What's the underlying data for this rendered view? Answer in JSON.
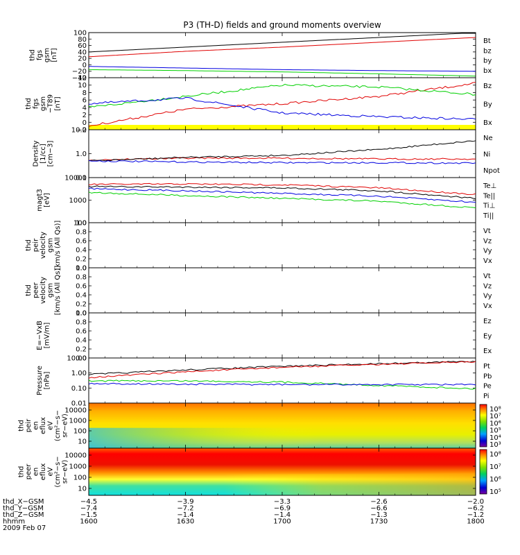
{
  "title": "P3 (TH-D) fields and ground moments overview",
  "colors": {
    "black": "#000000",
    "red": "#e00000",
    "green": "#00d000",
    "blue": "#0000e0",
    "yellow": "#ffff00"
  },
  "panels": [
    {
      "id": "fgs",
      "ylabel": [
        "thd",
        "fgs",
        "gsm",
        "[nT]"
      ],
      "yticks": [
        "100",
        "80",
        "60",
        "40",
        "20",
        "0",
        "−20",
        "−40"
      ],
      "ylim": [
        -40,
        100
      ],
      "legend": [
        {
          "text": "Bt",
          "color": "black"
        },
        {
          "text": "bz",
          "color": "red"
        },
        {
          "text": "by",
          "color": "green"
        },
        {
          "text": "bx",
          "color": "blue"
        }
      ]
    },
    {
      "id": "fgs_t89",
      "ylabel": [
        "thd",
        "fgs",
        "gsm",
        "−T89",
        "[nT]"
      ],
      "yticks": [
        "12",
        "10",
        "8",
        "6",
        "4",
        "2",
        "0",
        "−2"
      ],
      "ylim": [
        -2,
        12
      ],
      "legend": [
        {
          "text": "Bz",
          "color": "red"
        },
        {
          "text": "By",
          "color": "green"
        },
        {
          "text": "Bx",
          "color": "blue"
        }
      ]
    },
    {
      "id": "density",
      "ylabel": [
        "Density",
        "[1/cc]",
        "[cm−3]"
      ],
      "yticks": [
        "10.0",
        "1.0",
        "0.1"
      ],
      "ylim": [
        0.1,
        10
      ],
      "legend": [
        {
          "text": "Ne",
          "color": "red"
        },
        {
          "text": "Ni",
          "color": "black"
        },
        {
          "text": "Npot",
          "color": "blue"
        }
      ]
    },
    {
      "id": "temperature",
      "ylabel": [
        "magt3",
        "[eV]"
      ],
      "yticks": [
        "10000",
        "1000",
        "100"
      ],
      "ylim": [
        100,
        10000
      ],
      "legend": [
        {
          "text": "Te⊥",
          "color": "red"
        },
        {
          "text": "Te||",
          "color": "black"
        },
        {
          "text": "Ti⊥",
          "color": "blue"
        },
        {
          "text": "Ti||",
          "color": "green"
        }
      ]
    },
    {
      "id": "peir_velocity",
      "ylabel": [
        "thd",
        "peir",
        "velocity",
        "gsm",
        "[km/s (All Qs)]"
      ],
      "yticks": [
        "1.0",
        "0.8",
        "0.6",
        "0.4",
        "0.2",
        "0.0"
      ],
      "ylim": [
        0,
        1
      ],
      "legend": [
        {
          "text": "Vt",
          "color": "black"
        },
        {
          "text": "Vz",
          "color": "red"
        },
        {
          "text": "Vy",
          "color": "green"
        },
        {
          "text": "Vx",
          "color": "blue"
        }
      ]
    },
    {
      "id": "peer_velocity",
      "ylabel": [
        "thd",
        "peer",
        "velocity",
        "gsm",
        "[km/s (All Qs)]"
      ],
      "yticks": [
        "1.0",
        "0.8",
        "0.6",
        "0.4",
        "0.2",
        "0.0"
      ],
      "ylim": [
        0,
        1
      ],
      "legend": [
        {
          "text": "Vt",
          "color": "black"
        },
        {
          "text": "Vz",
          "color": "red"
        },
        {
          "text": "Vy",
          "color": "green"
        },
        {
          "text": "Vx",
          "color": "blue"
        }
      ]
    },
    {
      "id": "efield",
      "ylabel": [
        "E=−VxB",
        "[mV/m]"
      ],
      "yticks": [
        "1.0",
        "0.8",
        "0.6",
        "0.4",
        "0.2",
        "0.0"
      ],
      "ylim": [
        0,
        1
      ],
      "legend": [
        {
          "text": "Ez",
          "color": "red"
        },
        {
          "text": "Ey",
          "color": "green"
        },
        {
          "text": "Ex",
          "color": "blue"
        }
      ]
    },
    {
      "id": "pressure",
      "ylabel": [
        "Pressure",
        "[nPa]"
      ],
      "yticks": [
        "10.00",
        "1.00",
        "0.10",
        "0.01"
      ],
      "ylim": [
        0.01,
        10
      ],
      "legend": [
        {
          "text": "Pt",
          "color": "black"
        },
        {
          "text": "Pb",
          "color": "red"
        },
        {
          "text": "Pe",
          "color": "green"
        },
        {
          "text": "Pi",
          "color": "blue"
        }
      ]
    },
    {
      "id": "peir_eflux",
      "ylabel": [
        "thd",
        "peir",
        "en",
        "eflux",
        "eV",
        "(cm²−s−",
        "sr−eV)"
      ],
      "yticks": [
        "10000",
        "1000",
        "100",
        "10"
      ],
      "colorbar": [
        "10⁸",
        "10⁷",
        "10⁶",
        "10⁵",
        "10⁴",
        "10³"
      ]
    },
    {
      "id": "peer_eflux",
      "ylabel": [
        "thd",
        "peer",
        "en",
        "eflux",
        "eV",
        "(cm²−s−",
        "sr−eV)"
      ],
      "yticks": [
        "10000",
        "1000",
        "100",
        "10"
      ],
      "colorbar": [
        "10⁸",
        "10⁷",
        "10⁶",
        "10⁵"
      ]
    }
  ],
  "xaxis": {
    "rows": [
      {
        "label": "thd_X−GSM",
        "values": [
          "−4.5",
          "−3.9",
          "−3.3",
          "−2.6",
          "−2.0"
        ]
      },
      {
        "label": "thd_Y−GSM",
        "values": [
          "−7.4",
          "−7.2",
          "−6.9",
          "−6.6",
          "−6.2"
        ]
      },
      {
        "label": "thd_Z−GSM",
        "values": [
          "−1.5",
          "−1.4",
          "−1.4",
          "−1.3",
          "−1.2"
        ]
      },
      {
        "label": "hhmm",
        "values": [
          "1600",
          "1630",
          "1700",
          "1730",
          "1800"
        ]
      }
    ],
    "date": "2009 Feb 07"
  },
  "chart_data": {
    "type": "line",
    "title": "P3 (TH-D) fields and ground moments overview",
    "x_label": "hhmm",
    "x": [
      "1600",
      "1630",
      "1700",
      "1730",
      "1800"
    ],
    "series": [
      {
        "panel": "fgs",
        "name": "Bt",
        "color": "black",
        "values": [
          40,
          55,
          70,
          85,
          100
        ]
      },
      {
        "panel": "fgs",
        "name": "bz",
        "color": "red",
        "values": [
          25,
          42,
          55,
          70,
          85
        ]
      },
      {
        "panel": "fgs",
        "name": "by",
        "color": "green",
        "values": [
          -15,
          -18,
          -22,
          -28,
          -35
        ]
      },
      {
        "panel": "fgs",
        "name": "bx",
        "color": "blue",
        "values": [
          -5,
          -10,
          -15,
          -18,
          -20
        ]
      },
      {
        "panel": "fgs_t89",
        "name": "Bz",
        "color": "red",
        "values": [
          -1,
          3.5,
          5,
          7,
          10.5
        ]
      },
      {
        "panel": "fgs_t89",
        "name": "By",
        "color": "green",
        "values": [
          4,
          7,
          10,
          9.5,
          7.5
        ]
      },
      {
        "panel": "fgs_t89",
        "name": "Bx",
        "color": "blue",
        "values": [
          5,
          6.5,
          2.5,
          1.5,
          0.8
        ]
      },
      {
        "panel": "density",
        "name": "Ne",
        "color": "red",
        "values": [
          0.55,
          0.65,
          0.65,
          0.6,
          0.6
        ]
      },
      {
        "panel": "density",
        "name": "Ni",
        "color": "black",
        "values": [
          0.5,
          0.7,
          0.85,
          1.5,
          3.5
        ]
      },
      {
        "panel": "density",
        "name": "Npot",
        "color": "blue",
        "values": [
          0.5,
          0.45,
          0.42,
          0.42,
          0.4
        ]
      },
      {
        "panel": "temperature",
        "name": "Te⊥",
        "color": "red",
        "values": [
          5000,
          5200,
          4800,
          3500,
          1800
        ]
      },
      {
        "panel": "temperature",
        "name": "Te||",
        "color": "black",
        "values": [
          4000,
          3800,
          3500,
          2600,
          1200
        ]
      },
      {
        "panel": "temperature",
        "name": "Ti⊥",
        "color": "blue",
        "values": [
          3200,
          2600,
          2000,
          1500,
          800
        ]
      },
      {
        "panel": "temperature",
        "name": "Ti||",
        "color": "green",
        "values": [
          2200,
          1600,
          1200,
          900,
          450
        ]
      },
      {
        "panel": "pressure",
        "name": "Pt",
        "color": "black",
        "values": [
          0.8,
          1.6,
          2.8,
          4.2,
          6.0
        ]
      },
      {
        "panel": "pressure",
        "name": "Pb",
        "color": "red",
        "values": [
          0.5,
          1.2,
          2.4,
          3.8,
          5.6
        ]
      },
      {
        "panel": "pressure",
        "name": "Pe",
        "color": "green",
        "values": [
          0.3,
          0.3,
          0.25,
          0.15,
          0.09
        ]
      },
      {
        "panel": "pressure",
        "name": "Pi",
        "color": "blue",
        "values": [
          0.2,
          0.18,
          0.17,
          0.17,
          0.17
        ]
      }
    ]
  }
}
